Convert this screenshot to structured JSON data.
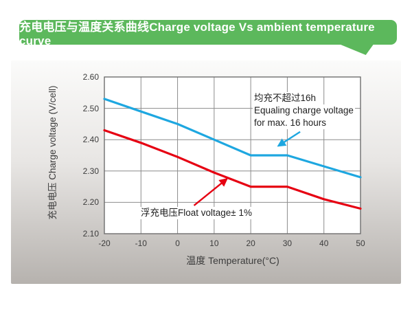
{
  "banner": {
    "title": "充电电压与温度关系曲线Charge voltage Vs ambient temperature curve",
    "color": "#5cb85c"
  },
  "chart_data": {
    "type": "line",
    "title": "充电电压与温度关系曲线Charge voltage Vs ambient temperature curve",
    "xlabel": "温度 Temperature(°C)",
    "ylabel": "充电电压 Charge voltage (V/cell)",
    "xlim": [
      -20,
      50
    ],
    "ylim": [
      2.1,
      2.6
    ],
    "grid": true,
    "legend_position": "none",
    "x": [
      -20,
      -10,
      0,
      10,
      20,
      30,
      40,
      50
    ],
    "x_ticks": [
      "-20",
      "-10",
      "0",
      "10",
      "20",
      "30",
      "40",
      "50"
    ],
    "y_tick_values": [
      2.6,
      2.5,
      2.4,
      2.3,
      2.2,
      2.1
    ],
    "y_ticks": [
      "2.60",
      "2.50",
      "2.40",
      "2.30",
      "2.20",
      "2.10"
    ],
    "series": [
      {
        "name": "equalizing-charge-voltage",
        "color": "#1ea7e0",
        "values": [
          2.53,
          2.49,
          2.45,
          2.4,
          2.35,
          2.35,
          2.315,
          2.28
        ]
      },
      {
        "name": "float-voltage",
        "color": "#e60012",
        "values": [
          2.43,
          2.39,
          2.345,
          2.295,
          2.25,
          2.25,
          2.21,
          2.18
        ]
      }
    ],
    "annotations": [
      {
        "lines": [
          "均充不超过16h",
          "Equaling charge voltage",
          "for max. 16 hours"
        ],
        "arrow_color": "#1ea7e0",
        "arrow_from": [
          33.5,
          2.425
        ],
        "arrow_to": [
          27.5,
          2.38
        ]
      },
      {
        "lines": [
          "浮充电压Float voltage± 1%"
        ],
        "arrow_color": "#e60012",
        "arrow_from": [
          4.5,
          2.19
        ],
        "arrow_to": [
          13.5,
          2.275
        ]
      }
    ],
    "colors": {
      "grid": "#8c8c8c",
      "plot_border": "#6e6e6e",
      "plot_background": "#ffffff",
      "text": "#3c3c3c"
    }
  }
}
